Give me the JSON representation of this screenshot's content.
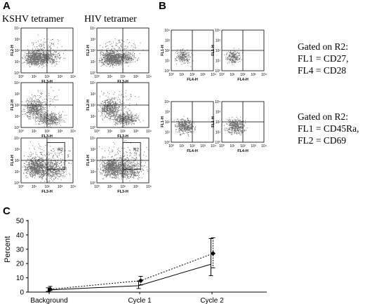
{
  "panel_letters": {
    "a": "A",
    "b": "B",
    "c": "C"
  },
  "panel_a": {
    "column_titles": [
      "KSHV tetramer",
      "HIV tetramer"
    ],
    "rows": [
      {
        "y_label": "FL2-H",
        "x_label": "FL3-H",
        "gate": ""
      },
      {
        "y_label": "FL2-H",
        "x_label": "FL3-H",
        "gate": ""
      },
      {
        "y_label": "FL4-H",
        "x_label": "FL3-H",
        "gate": "R2"
      }
    ],
    "ticks": [
      "10⁰",
      "10¹",
      "10²",
      "10³",
      "10⁴"
    ]
  },
  "panel_b": {
    "rows": [
      {
        "y_label": "FL1-H",
        "x_label": "FL4-H",
        "gate_lines": [
          "Gated on R2:",
          "FL1 = CD27,",
          "FL4 = CD28"
        ]
      },
      {
        "y_label": "FL1-H",
        "x_label": "FL4-H",
        "gate_lines": [
          "Gated on R2:",
          "FL1 = CD45Ra,",
          "FL2 = CD69"
        ]
      }
    ],
    "ticks": [
      "10⁰",
      "10¹",
      "10²",
      "10³",
      "10⁴"
    ]
  },
  "chart_data": {
    "type": "line",
    "title": "",
    "xlabel": "",
    "ylabel": "Percent",
    "categories": [
      "Background",
      "Cycle 1",
      "Cycle 2"
    ],
    "ylim": [
      0,
      50
    ],
    "yticks": [
      0,
      10,
      20,
      30,
      40,
      50
    ],
    "grid": false,
    "series": [
      {
        "style": "dotted",
        "marker": "diamond",
        "values": [
          2,
          8,
          27
        ],
        "err_low": [
          1,
          3,
          10
        ],
        "err_high": [
          2,
          3,
          11
        ]
      },
      {
        "style": "solid",
        "marker": "none",
        "values": [
          1.5,
          4.5,
          19.5
        ],
        "err_low": [
          1,
          2,
          8
        ],
        "err_high": [
          1.5,
          3,
          18
        ]
      }
    ]
  }
}
